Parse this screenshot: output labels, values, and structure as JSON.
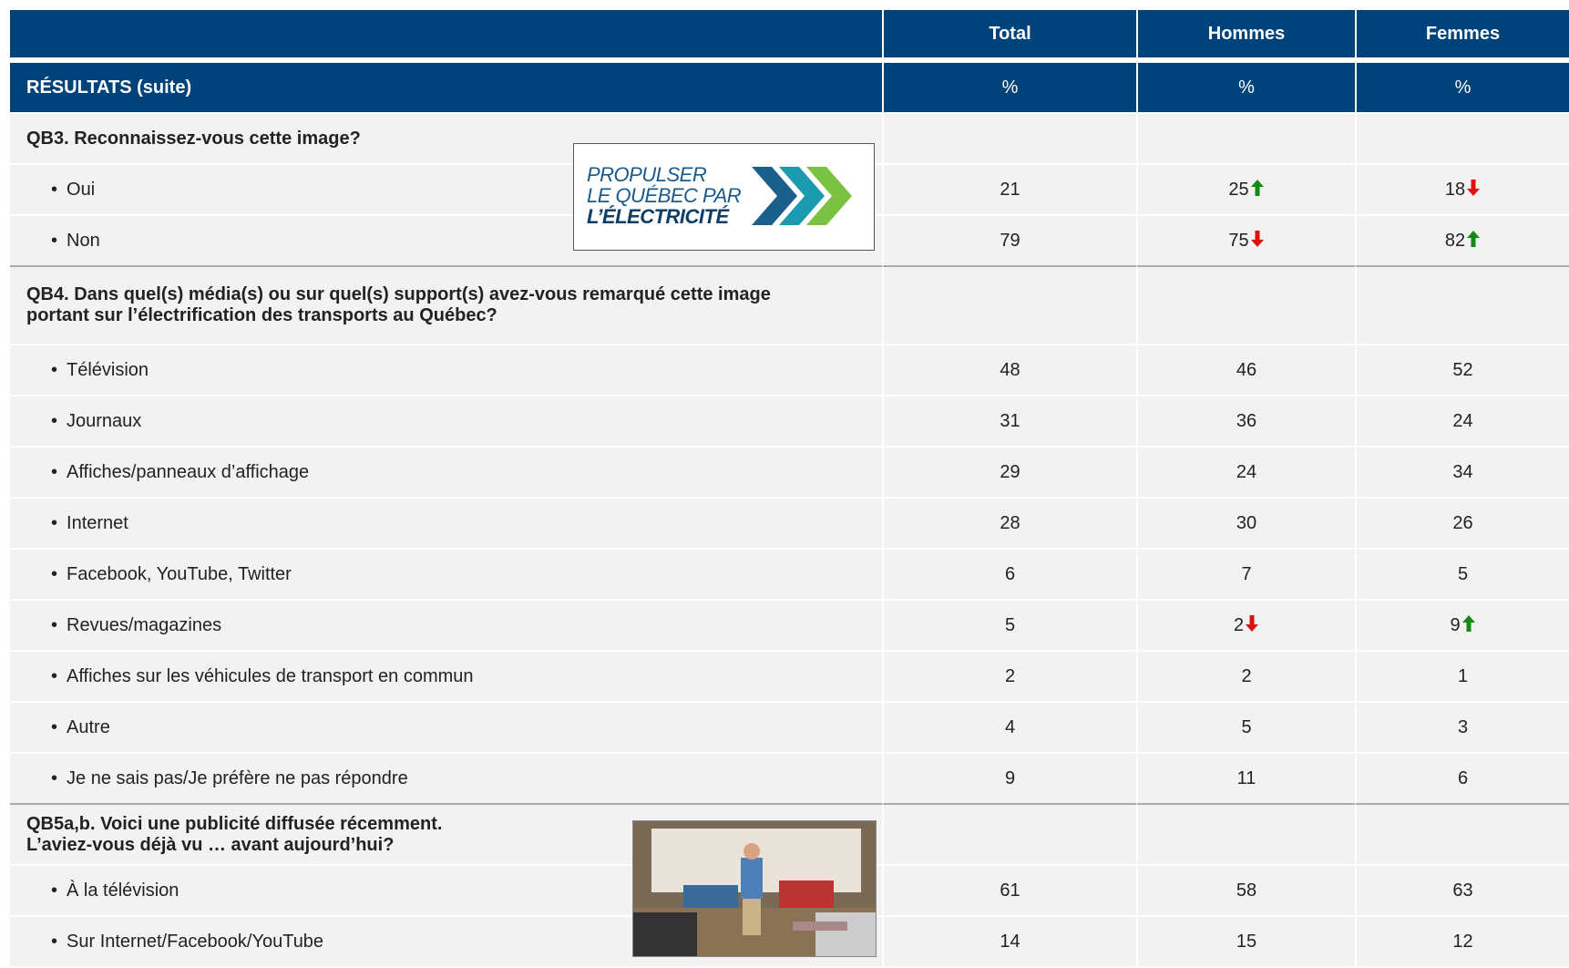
{
  "header": {
    "columns": [
      "Total",
      "Hommes",
      "Femmes"
    ],
    "section": "RÉSULTATS (suite)",
    "units": [
      "%",
      "%",
      "%"
    ]
  },
  "sections": [
    {
      "question": "QB3. Reconnaissez-vous cette image?",
      "rows": [
        {
          "label": "Oui",
          "values": [
            "21",
            "25",
            "18"
          ],
          "trends": [
            null,
            "up",
            "down"
          ]
        },
        {
          "label": "Non",
          "values": [
            "79",
            "75",
            "82"
          ],
          "trends": [
            null,
            "down",
            "up"
          ]
        }
      ]
    },
    {
      "question": "QB4. Dans quel(s) média(s) ou sur quel(s) support(s) avez-vous remarqué cette image portant sur l’électrification des transports au Québec?",
      "rows": [
        {
          "label": "Télévision",
          "values": [
            "48",
            "46",
            "52"
          ]
        },
        {
          "label": "Journaux",
          "values": [
            "31",
            "36",
            "24"
          ]
        },
        {
          "label": "Affiches/panneaux d’affichage",
          "values": [
            "29",
            "24",
            "34"
          ]
        },
        {
          "label": "Internet",
          "values": [
            "28",
            "30",
            "26"
          ]
        },
        {
          "label": "Facebook, YouTube, Twitter",
          "values": [
            "6",
            "7",
            "5"
          ]
        },
        {
          "label": "Revues/magazines",
          "values": [
            "5",
            "2",
            "9"
          ],
          "trends": [
            null,
            "down",
            "up"
          ]
        },
        {
          "label": "Affiches sur les véhicules de transport en commun",
          "values": [
            "2",
            "2",
            "1"
          ]
        },
        {
          "label": "Autre",
          "values": [
            "4",
            "5",
            "3"
          ]
        },
        {
          "label": "Je ne sais pas/Je préfère ne pas répondre",
          "values": [
            "9",
            "11",
            "6"
          ]
        }
      ]
    },
    {
      "question": "QB5a,b. Voici une publicité diffusée récemment. L’aviez-vous déjà vu … avant aujourd’hui?",
      "rows": [
        {
          "label": "À la télévision",
          "values": [
            "61",
            "58",
            "63"
          ]
        },
        {
          "label": "Sur Internet/Facebook/YouTube",
          "values": [
            "14",
            "15",
            "12"
          ]
        }
      ]
    }
  ],
  "logo": {
    "lines": [
      "PROPULSER",
      "LE QUÉBEC PAR",
      "L’ÉLECTRICITÉ"
    ]
  }
}
